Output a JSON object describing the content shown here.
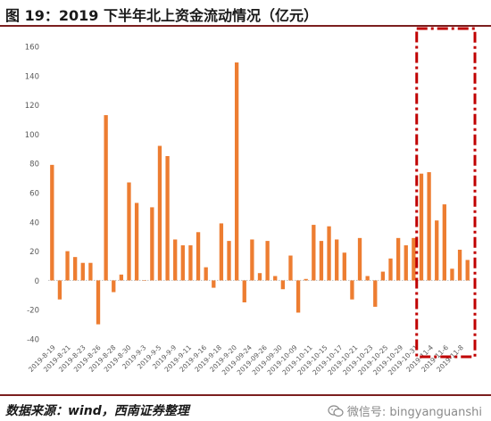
{
  "header": {
    "title": "图 19：2019 下半年北上资金流动情况（亿元）"
  },
  "footer": {
    "source": "数据来源：wind，西南证券整理",
    "watermark": "微信号: bingyanguanshi",
    "watermark_icon": "wechat-icon"
  },
  "colors": {
    "bar": "#ed7d31",
    "highlight_box": "#c00000",
    "axis": "#bfbfbf",
    "text": "#595959",
    "rule": "#7b1f1f"
  },
  "chart_data": {
    "type": "bar",
    "title": "",
    "xlabel": "",
    "ylabel": "",
    "ylim": [
      -40,
      160
    ],
    "yticks": [
      -40,
      -20,
      0,
      20,
      40,
      60,
      80,
      100,
      120,
      140,
      160
    ],
    "grid": false,
    "legend": "none",
    "x_tick_labels": [
      "2019-8-19",
      "2019-8-21",
      "2019-8-23",
      "2019-8-26",
      "2019-8-28",
      "2019-8-30",
      "2019-9-3",
      "2019-9-5",
      "2019-9-9",
      "2019-9-11",
      "2019-9-16",
      "2019-9-18",
      "2019-9-20",
      "2019-09-24",
      "2019-09-26",
      "2019-09-30",
      "2019-10-09",
      "2019-10-11",
      "2019-10-15",
      "2019-10-17",
      "2019-10-21",
      "2019-10-23",
      "2019-10-25",
      "2019-10-29",
      "2019-10-31",
      "2019-11-4",
      "2019-11-6",
      "2019-11-8"
    ],
    "values": [
      79,
      -13,
      20,
      16,
      12,
      12,
      -30,
      113,
      -8,
      4,
      67,
      53,
      0,
      50,
      92,
      85,
      28,
      24,
      24,
      33,
      9,
      -5,
      39,
      27,
      149,
      -15,
      28,
      5,
      27,
      3,
      -6,
      17,
      -22,
      1,
      38,
      27,
      37,
      28,
      19,
      -13,
      29,
      3,
      -18,
      6,
      15,
      29,
      24,
      29,
      73,
      74,
      41,
      52,
      8,
      21,
      14
    ],
    "highlight": {
      "from_label": "2019-10-31",
      "to_label": "2019-11-8",
      "style": "dash-dot rectangle"
    }
  }
}
